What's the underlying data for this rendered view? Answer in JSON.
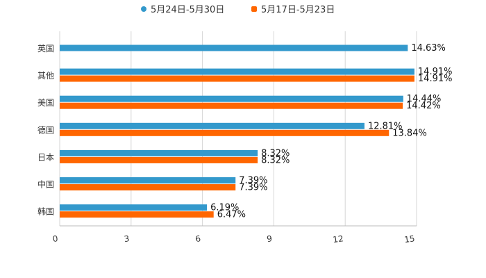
{
  "chart_data": {
    "type": "bar",
    "orientation": "horizontal",
    "categories": [
      "英国",
      "其他",
      "美国",
      "德国",
      "日本",
      "中国",
      "韩国"
    ],
    "series": [
      {
        "name": "5月24日-5月30日",
        "color": "#3399cc",
        "values": [
          14.63,
          14.91,
          14.44,
          12.81,
          8.32,
          7.39,
          6.19
        ],
        "labels": [
          "14.63%",
          "14.91%",
          "14.44%",
          "12.81%",
          "8.32%",
          "7.39%",
          "6.19%"
        ]
      },
      {
        "name": "5月17日-5月23日",
        "color": "#ff6600",
        "values": [
          null,
          14.91,
          14.42,
          13.84,
          8.32,
          7.39,
          6.47
        ],
        "labels": [
          null,
          "14.91%",
          "14.42%",
          "13.84%",
          "8.32%",
          "7.39%",
          "6.47%"
        ]
      }
    ],
    "xlim": [
      0,
      15
    ],
    "xticks": [
      "0",
      "3",
      "6",
      "9",
      "12",
      "15"
    ],
    "grid": true,
    "legend_position": "top-center",
    "title": "",
    "xlabel": "",
    "ylabel": ""
  }
}
